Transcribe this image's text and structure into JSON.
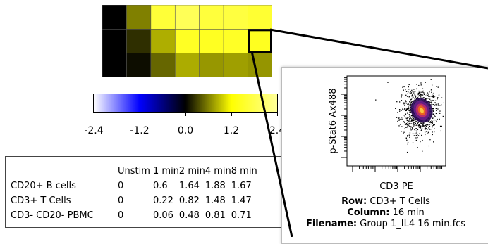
{
  "chart_data": [
    {
      "type": "heatmap",
      "rows": [
        "CD20+ B cells",
        "CD3+ T Cells",
        "CD3- CD20- PBMC"
      ],
      "columns": [
        "Unstim",
        "1 min",
        "2 min",
        "4 min",
        "8 min",
        "",
        ""
      ],
      "values": [
        [
          0,
          0.6,
          1.64,
          1.88,
          1.67,
          1.7,
          1.6
        ],
        [
          0,
          0.22,
          0.82,
          1.48,
          1.47,
          1.5,
          1.45
        ],
        [
          0,
          0.06,
          0.48,
          0.81,
          0.71,
          0.75,
          0.7
        ]
      ],
      "highlighted": {
        "row": 1,
        "column": 6
      },
      "colorscale": {
        "min": -2.4,
        "max": 2.4,
        "stops": [
          {
            "value": -2.4,
            "color": "#ffffff"
          },
          {
            "value": -1.2,
            "color": "#0000ff"
          },
          {
            "value": 0,
            "color": "#000000"
          },
          {
            "value": 1.2,
            "color": "#ffff00"
          },
          {
            "value": 2.4,
            "color": "#ffff99"
          }
        ],
        "ticks": [
          "-2.4",
          "-1.2",
          "0.0",
          "1.2",
          "2.4"
        ]
      }
    },
    {
      "type": "table",
      "columns": [
        "Unstim",
        "1 min",
        "2 min",
        "4 min",
        "8 min"
      ],
      "rows": [
        {
          "label": "CD20+ B cells",
          "values": [
            "0",
            "0.6",
            "1.64",
            "1.88",
            "1.67"
          ]
        },
        {
          "label": "CD3+ T Cells",
          "values": [
            "0",
            "0.22",
            "0.82",
            "1.48",
            "1.47"
          ]
        },
        {
          "label": "CD3- CD20- PBMC",
          "values": [
            "0",
            "0.06",
            "0.48",
            "0.81",
            "0.71"
          ]
        }
      ]
    },
    {
      "type": "scatter",
      "xlabel": "CD3 PE",
      "ylabel": "p-Stat6 Ax488",
      "xscale": "log",
      "yscale": "log",
      "density_colors": [
        "#2a0a55",
        "#6a1f8a",
        "#c0306a",
        "#f06a1a",
        "#ffd040"
      ]
    }
  ],
  "popup": {
    "row_label": "Row:",
    "row_value": "CD3+ T Cells",
    "column_label": "Column:",
    "column_value": "16 min",
    "filename_label": "Filename:",
    "filename_value": "Group 1_IL4 16 min.fcs"
  }
}
